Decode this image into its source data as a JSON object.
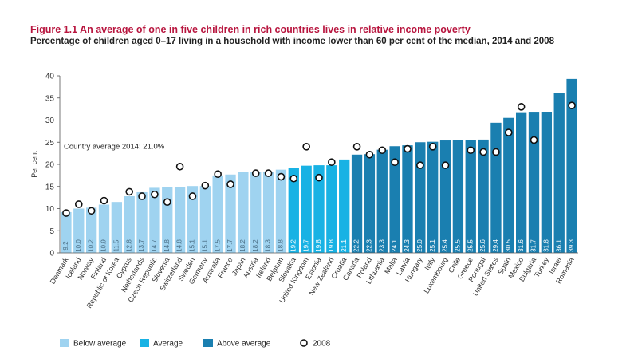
{
  "figure": {
    "title": "Figure 1.1  An average of one in five children in rich countries lives in relative income poverty",
    "subtitle": "Percentage of children aged 0–17 living in a household with income lower than 60 per cent of the median, 2014 and 2008"
  },
  "chart_data": {
    "type": "bar",
    "ylabel": "Per cent",
    "ylim": [
      0,
      40
    ],
    "yticks": [
      0,
      5,
      10,
      15,
      20,
      25,
      30,
      35,
      40
    ],
    "average": {
      "value": 21.0,
      "label": "Country average 2014: 21.0%"
    },
    "categories": [
      "Denmark",
      "Iceland",
      "Norway",
      "Finland",
      "Republic of Korea",
      "Cyprus",
      "Netherlands",
      "Czech Republic",
      "Slovenia",
      "Switzerland",
      "Sweden",
      "Germany",
      "Australia",
      "France",
      "Japan",
      "Austria",
      "Ireland",
      "Belgium",
      "Slovakia",
      "United Kingdom",
      "Estonia",
      "New Zealand",
      "Croatia",
      "Canada",
      "Poland",
      "Lithuania",
      "Malta",
      "Latvia",
      "Hungary",
      "Italy",
      "Luxembourg",
      "Chile",
      "Greece",
      "Portugal",
      "United States",
      "Spain",
      "Mexico",
      "Bulgaria",
      "Turkey",
      "Israel",
      "Romania"
    ],
    "series": [
      {
        "values": [
          9.2,
          10.0,
          10.2,
          10.9,
          11.5,
          12.8,
          13.7,
          14.7,
          14.8,
          14.8,
          15.1,
          15.1,
          17.5,
          17.7,
          18.2,
          18.2,
          18.3,
          18.8,
          19.2,
          19.7,
          19.8,
          19.8,
          21.1,
          22.2,
          22.3,
          23.3,
          24.1,
          24.3,
          25.0,
          25.1,
          25.4,
          25.5,
          25.5,
          25.6,
          29.4,
          30.5,
          31.6,
          31.7,
          31.8,
          36.1,
          39.3
        ]
      },
      {
        "name": "2008",
        "values": [
          9.0,
          11.0,
          9.5,
          11.8,
          null,
          13.8,
          12.8,
          13.2,
          11.5,
          19.5,
          12.8,
          15.2,
          17.8,
          15.5,
          null,
          18.0,
          18.0,
          17.2,
          16.8,
          24.0,
          17.0,
          20.5,
          null,
          24.0,
          22.2,
          23.2,
          20.5,
          23.5,
          19.8,
          24.0,
          19.8,
          null,
          23.2,
          22.8,
          22.8,
          27.2,
          33.0,
          25.5,
          null,
          null,
          33.3
        ]
      }
    ],
    "color_groups": [
      "below",
      "below",
      "below",
      "below",
      "below",
      "below",
      "below",
      "below",
      "below",
      "below",
      "below",
      "below",
      "below",
      "below",
      "below",
      "below",
      "below",
      "below",
      "avg",
      "avg",
      "avg",
      "avg",
      "avg",
      "above",
      "above",
      "above",
      "above",
      "above",
      "above",
      "above",
      "above",
      "above",
      "above",
      "above",
      "above",
      "above",
      "above",
      "above",
      "above",
      "above",
      "above"
    ],
    "colors": {
      "below": "#9fd3f0",
      "avg": "#18b2e4",
      "above": "#1a7fb0",
      "axis": "#555555",
      "average_line": "#444444"
    },
    "legend": {
      "placement": "bottom-left",
      "items": [
        {
          "key": "below",
          "label": "Below average"
        },
        {
          "key": "avg",
          "label": "Average"
        },
        {
          "key": "above",
          "label": "Above average"
        },
        {
          "key": "marker",
          "label": "2008"
        }
      ]
    }
  }
}
